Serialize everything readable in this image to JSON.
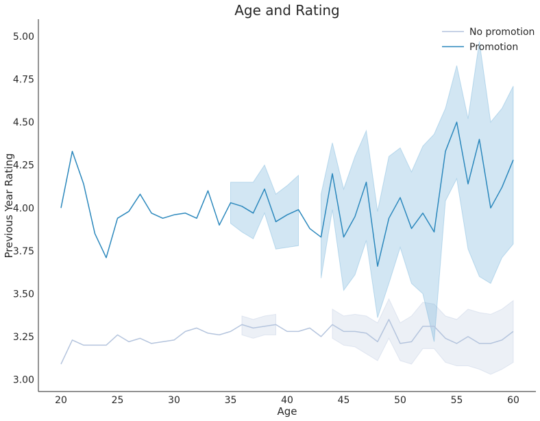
{
  "chart_data": {
    "type": "line",
    "title": "Age and Rating",
    "xlabel": "Age",
    "ylabel": "Previous Year Rating",
    "xlim": [
      18,
      62
    ],
    "ylim": [
      2.93,
      5.1
    ],
    "xticks": [
      20,
      25,
      30,
      35,
      40,
      45,
      50,
      55,
      60
    ],
    "yticks": [
      3.0,
      3.25,
      3.5,
      3.75,
      4.0,
      4.25,
      4.5,
      4.75,
      5.0
    ],
    "ytick_labels": [
      "3.00",
      "3.25",
      "3.50",
      "3.75",
      "4.00",
      "4.25",
      "4.50",
      "4.75",
      "5.00"
    ],
    "grid": false,
    "legend_position": "top-right",
    "series": [
      {
        "name": "No promotion",
        "color": "#b4c4dd",
        "band_color": "#b4c4dd",
        "x": [
          20,
          21,
          22,
          23,
          24,
          25,
          26,
          27,
          28,
          29,
          30,
          31,
          32,
          33,
          34,
          35,
          36,
          37,
          38,
          39,
          40,
          41,
          42,
          43,
          44,
          45,
          46,
          47,
          48,
          49,
          50,
          51,
          52,
          53,
          54,
          55,
          56,
          57,
          58,
          59,
          60
        ],
        "y": [
          3.09,
          3.23,
          3.2,
          3.2,
          3.2,
          3.26,
          3.22,
          3.24,
          3.21,
          3.22,
          3.23,
          3.28,
          3.3,
          3.27,
          3.26,
          3.28,
          3.32,
          3.3,
          3.31,
          3.32,
          3.28,
          3.28,
          3.3,
          3.25,
          3.32,
          3.28,
          3.28,
          3.27,
          3.22,
          3.35,
          3.21,
          3.22,
          3.31,
          3.31,
          3.24,
          3.21,
          3.25,
          3.21,
          3.21,
          3.23,
          3.28
        ],
        "band_segments": [
          {
            "x": [
              36,
              37,
              38,
              39
            ],
            "lower": [
              3.26,
              3.24,
              3.26,
              3.26
            ],
            "upper": [
              3.37,
              3.35,
              3.37,
              3.38
            ]
          },
          {
            "x": [
              44,
              45,
              46,
              47,
              48,
              49,
              50,
              51,
              52,
              53,
              54,
              55,
              56,
              57,
              58,
              59,
              60
            ],
            "lower": [
              3.24,
              3.2,
              3.19,
              3.15,
              3.11,
              3.24,
              3.11,
              3.09,
              3.18,
              3.18,
              3.1,
              3.08,
              3.08,
              3.06,
              3.03,
              3.06,
              3.1
            ],
            "upper": [
              3.41,
              3.37,
              3.38,
              3.37,
              3.33,
              3.47,
              3.33,
              3.37,
              3.45,
              3.44,
              3.37,
              3.35,
              3.41,
              3.39,
              3.38,
              3.41,
              3.46
            ]
          }
        ]
      },
      {
        "name": "Promotion",
        "color": "#2a87bc",
        "band_color": "#5da6d3",
        "x": [
          20,
          21,
          22,
          23,
          24,
          25,
          26,
          27,
          28,
          29,
          30,
          31,
          32,
          33,
          34,
          35,
          36,
          37,
          38,
          39,
          40,
          41,
          42,
          43,
          44,
          45,
          46,
          47,
          48,
          49,
          50,
          51,
          52,
          53,
          54,
          55,
          56,
          57,
          58,
          59,
          60
        ],
        "y": [
          4.0,
          4.33,
          4.14,
          3.85,
          3.71,
          3.94,
          3.98,
          4.08,
          3.97,
          3.94,
          3.96,
          3.97,
          3.94,
          4.1,
          3.9,
          4.03,
          4.01,
          3.97,
          4.11,
          3.92,
          3.96,
          3.99,
          3.88,
          3.83,
          4.2,
          3.83,
          3.95,
          4.15,
          3.66,
          3.94,
          4.06,
          3.88,
          3.97,
          3.86,
          4.33,
          4.5,
          4.14,
          4.4,
          4.0,
          4.12,
          4.28
        ],
        "band_segments": [
          {
            "x": [
              35,
              36,
              37,
              38,
              39,
              40,
              41
            ],
            "lower": [
              3.91,
              3.86,
              3.82,
              3.97,
              3.76,
              3.77,
              3.78
            ],
            "upper": [
              4.15,
              4.15,
              4.15,
              4.25,
              4.08,
              4.13,
              4.19
            ]
          },
          {
            "x": [
              43,
              44,
              45,
              46,
              47,
              48,
              49,
              50,
              51,
              52,
              53,
              54,
              55,
              56,
              57,
              58,
              59,
              60
            ],
            "lower": [
              3.59,
              3.99,
              3.52,
              3.61,
              3.81,
              3.36,
              3.56,
              3.77,
              3.56,
              3.5,
              3.22,
              4.04,
              4.17,
              3.76,
              3.6,
              3.56,
              3.71,
              3.79
            ],
            "upper": [
              4.08,
              4.38,
              4.11,
              4.3,
              4.45,
              3.98,
              4.3,
              4.35,
              4.21,
              4.36,
              4.43,
              4.58,
              4.83,
              4.52,
              4.97,
              4.5,
              4.58,
              4.71
            ]
          }
        ]
      }
    ]
  }
}
